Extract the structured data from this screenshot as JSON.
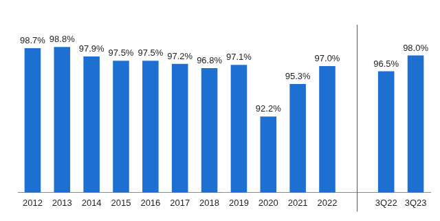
{
  "chart_data": {
    "type": "bar",
    "categories": [
      "2012",
      "2013",
      "2014",
      "2015",
      "2016",
      "2017",
      "2018",
      "2019",
      "2020",
      "2021",
      "2022",
      null,
      "3Q22",
      "3Q23"
    ],
    "values": [
      98.7,
      98.8,
      97.9,
      97.5,
      97.5,
      97.2,
      96.8,
      97.1,
      92.2,
      95.3,
      97.0,
      null,
      96.5,
      98.0
    ],
    "value_labels": [
      "98.7%",
      "98.8%",
      "97.9%",
      "97.5%",
      "97.5%",
      "97.2%",
      "96.8%",
      "97.1%",
      "92.2%",
      "95.3%",
      "97.0%",
      null,
      "96.5%",
      "98.0%"
    ],
    "color": "#1e6fd2",
    "ylim": [
      85,
      100
    ],
    "grid": false,
    "data_labels": true,
    "tick_labels": "x"
  }
}
